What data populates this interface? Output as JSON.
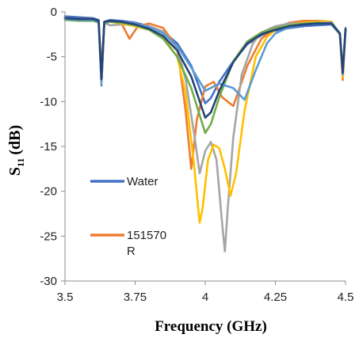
{
  "chart_data": {
    "type": "line",
    "title": "",
    "xlabel": "Frequency (GHz)",
    "ylabel_main": "S",
    "ylabel_sub": "11",
    "ylabel_unit": "(dB)",
    "xlim": [
      3.5,
      4.5
    ],
    "ylim": [
      -30,
      0
    ],
    "xticks": [
      3.5,
      3.75,
      4,
      4.25,
      4.5
    ],
    "xtick_labels": [
      "3.5",
      "3.75",
      "4",
      "4.25",
      "4.5"
    ],
    "yticks": [
      0,
      -5,
      -10,
      -15,
      -20,
      -25,
      -30
    ],
    "ytick_labels": [
      "0",
      "-5",
      "-10",
      "-15",
      "-20",
      "-25",
      "-30"
    ],
    "grid": false,
    "legend": {
      "placement": "inside-left",
      "entries": [
        {
          "label": "Water",
          "color": "#4472C4"
        },
        {
          "label": "151570",
          "label_line2": "R",
          "color": "#ED7D31"
        }
      ]
    },
    "series": [
      {
        "name": "Water",
        "color": "#4472C4",
        "x": [
          3.5,
          3.55,
          3.6,
          3.62,
          3.63,
          3.64,
          3.66,
          3.7,
          3.75,
          3.8,
          3.85,
          3.9,
          3.95,
          4.0,
          4.02,
          4.05,
          4.1,
          4.15,
          4.2,
          4.25,
          4.3,
          4.35,
          4.4,
          4.45,
          4.48,
          4.49,
          4.5
        ],
        "y": [
          -0.5,
          -0.6,
          -0.7,
          -0.9,
          -8.2,
          -1.1,
          -0.9,
          -1.0,
          -1.2,
          -1.6,
          -2.2,
          -3.5,
          -6.0,
          -10.2,
          -9.6,
          -7.8,
          -5.5,
          -3.6,
          -2.6,
          -2.1,
          -1.8,
          -1.6,
          -1.5,
          -1.4,
          -2.5,
          -7.0,
          -1.8
        ]
      },
      {
        "name": "151570 R",
        "color": "#ED7D31",
        "x": [
          3.5,
          3.55,
          3.6,
          3.62,
          3.63,
          3.64,
          3.66,
          3.7,
          3.73,
          3.76,
          3.8,
          3.85,
          3.9,
          3.93,
          3.95,
          3.97,
          4.0,
          4.03,
          4.06,
          4.1,
          4.15,
          4.2,
          4.25,
          4.3,
          4.35,
          4.4,
          4.45,
          4.48,
          4.49,
          4.5
        ],
        "y": [
          -0.7,
          -0.8,
          -0.8,
          -1.0,
          -6.5,
          -1.1,
          -1.0,
          -1.2,
          -3.0,
          -1.6,
          -1.3,
          -1.8,
          -4.0,
          -11.0,
          -17.5,
          -12.0,
          -8.3,
          -7.8,
          -9.5,
          -10.5,
          -6.0,
          -3.0,
          -1.8,
          -1.2,
          -1.0,
          -1.0,
          -1.1,
          -2.5,
          -7.6,
          -2.0
        ]
      },
      {
        "name": "",
        "color": "#A5A5A5",
        "x": [
          3.5,
          3.55,
          3.6,
          3.62,
          3.63,
          3.64,
          3.66,
          3.7,
          3.75,
          3.8,
          3.85,
          3.9,
          3.93,
          3.96,
          3.98,
          4.0,
          4.02,
          4.04,
          4.06,
          4.07,
          4.08,
          4.1,
          4.13,
          4.17,
          4.2,
          4.25,
          4.3,
          4.35,
          4.4,
          4.45,
          4.48,
          4.49,
          4.5
        ],
        "y": [
          -0.8,
          -0.9,
          -0.9,
          -1.1,
          -8.0,
          -1.2,
          -1.5,
          -1.4,
          -1.4,
          -1.6,
          -2.2,
          -4.0,
          -7.5,
          -13.5,
          -18.0,
          -15.5,
          -14.5,
          -16.5,
          -23.5,
          -26.7,
          -22.0,
          -14.0,
          -7.0,
          -3.5,
          -2.3,
          -1.6,
          -1.3,
          -1.2,
          -1.2,
          -1.3,
          -2.5,
          -7.0,
          -2.0
        ]
      },
      {
        "name": "",
        "color": "#FFC000",
        "x": [
          3.5,
          3.55,
          3.6,
          3.62,
          3.63,
          3.64,
          3.66,
          3.7,
          3.75,
          3.8,
          3.85,
          3.9,
          3.93,
          3.96,
          3.98,
          3.99,
          4.01,
          4.03,
          4.05,
          4.07,
          4.09,
          4.11,
          4.14,
          4.18,
          4.22,
          4.25,
          4.3,
          4.35,
          4.4,
          4.45,
          4.48,
          4.49,
          4.5
        ],
        "y": [
          -0.8,
          -0.9,
          -0.9,
          -1.1,
          -7.5,
          -1.2,
          -1.1,
          -1.3,
          -1.6,
          -2.0,
          -2.8,
          -5.0,
          -9.0,
          -17.0,
          -23.5,
          -22.0,
          -16.5,
          -14.8,
          -15.2,
          -17.5,
          -20.5,
          -18.0,
          -11.0,
          -5.0,
          -2.8,
          -2.0,
          -1.5,
          -1.2,
          -1.1,
          -1.1,
          -2.5,
          -7.3,
          -2.0
        ]
      },
      {
        "name": "",
        "color": "#70AD47",
        "x": [
          3.5,
          3.55,
          3.6,
          3.62,
          3.63,
          3.64,
          3.66,
          3.7,
          3.75,
          3.8,
          3.85,
          3.9,
          3.95,
          4.0,
          4.02,
          4.05,
          4.1,
          4.15,
          4.2,
          4.25,
          4.3,
          4.35,
          4.4,
          4.45,
          4.48,
          4.49,
          4.5
        ],
        "y": [
          -0.9,
          -1.0,
          -1.0,
          -1.2,
          -7.0,
          -1.3,
          -1.1,
          -1.2,
          -1.5,
          -2.0,
          -3.0,
          -5.0,
          -8.5,
          -13.5,
          -12.5,
          -9.5,
          -5.5,
          -3.3,
          -2.3,
          -1.8,
          -1.5,
          -1.3,
          -1.2,
          -1.3,
          -2.5,
          -6.5,
          -2.0
        ]
      },
      {
        "name": "",
        "color": "#5B9BD5",
        "x": [
          3.5,
          3.55,
          3.6,
          3.62,
          3.63,
          3.64,
          3.66,
          3.7,
          3.75,
          3.8,
          3.85,
          3.9,
          3.95,
          4.0,
          4.05,
          4.1,
          4.14,
          4.18,
          4.22,
          4.25,
          4.3,
          4.35,
          4.4,
          4.45,
          4.48,
          4.49,
          4.5
        ],
        "y": [
          -0.8,
          -0.9,
          -0.9,
          -1.1,
          -7.8,
          -1.2,
          -1.0,
          -1.1,
          -1.3,
          -1.7,
          -2.4,
          -3.8,
          -6.2,
          -8.8,
          -8.0,
          -8.5,
          -9.8,
          -6.5,
          -3.5,
          -2.4,
          -1.7,
          -1.4,
          -1.3,
          -1.2,
          -2.4,
          -7.0,
          -1.9
        ]
      },
      {
        "name": "",
        "color": "#264478",
        "x": [
          3.5,
          3.55,
          3.6,
          3.62,
          3.63,
          3.64,
          3.66,
          3.7,
          3.75,
          3.8,
          3.85,
          3.9,
          3.95,
          4.0,
          4.02,
          4.05,
          4.1,
          4.15,
          4.2,
          4.25,
          4.3,
          4.35,
          4.4,
          4.45,
          4.48,
          4.49,
          4.5
        ],
        "y": [
          -0.7,
          -0.8,
          -0.8,
          -1.0,
          -7.5,
          -1.1,
          -1.0,
          -1.1,
          -1.4,
          -1.9,
          -2.7,
          -4.3,
          -7.2,
          -11.8,
          -11.2,
          -8.8,
          -5.6,
          -3.5,
          -2.5,
          -2.0,
          -1.6,
          -1.4,
          -1.3,
          -1.3,
          -2.4,
          -6.8,
          -1.9
        ]
      }
    ]
  }
}
